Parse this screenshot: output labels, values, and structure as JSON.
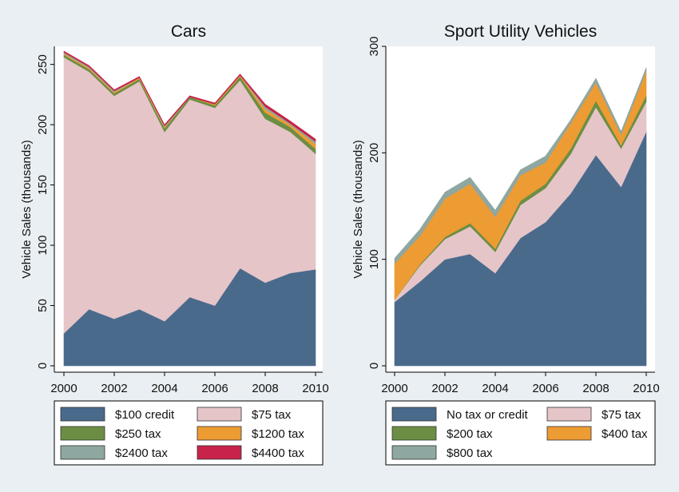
{
  "chart_data": [
    {
      "type": "area",
      "stacked": true,
      "title": "Cars",
      "ylabel": "Vehicle Sales (thousands)",
      "xlabel": "",
      "x": [
        2000,
        2001,
        2002,
        2003,
        2004,
        2005,
        2006,
        2007,
        2008,
        2009,
        2010
      ],
      "xticks": [
        2000,
        2002,
        2004,
        2006,
        2008,
        2010
      ],
      "yticks": [
        0,
        50,
        100,
        150,
        200,
        250
      ],
      "xlim": [
        2000,
        2010
      ],
      "ylim": [
        0,
        265
      ],
      "grid": false,
      "legend_position": "bottom",
      "series": [
        {
          "name": "$100 credit",
          "color": "#4a6a8c",
          "values": [
            27,
            47,
            39,
            47,
            37,
            57,
            50,
            81,
            69,
            77,
            80
          ]
        },
        {
          "name": "$75 tax",
          "color": "#e5c5c8",
          "values": [
            229,
            197,
            185,
            189,
            157,
            164,
            164,
            156,
            136,
            117,
            96
          ]
        },
        {
          "name": "$250 tax",
          "color": "#6b8e44",
          "values": [
            2,
            2,
            2,
            2,
            3,
            2,
            2,
            3,
            5,
            4,
            4
          ]
        },
        {
          "name": "$1200 tax",
          "color": "#ed9b33",
          "values": [
            1,
            1,
            1,
            1,
            1,
            0,
            1,
            1,
            3,
            2,
            4
          ]
        },
        {
          "name": "$2400 tax",
          "color": "#8fa7a1",
          "values": [
            1,
            1,
            1,
            0,
            1,
            0,
            0,
            0,
            2,
            1,
            2
          ]
        },
        {
          "name": "$4400 tax",
          "color": "#c8234a",
          "values": [
            1,
            1,
            1,
            1,
            1,
            1,
            1,
            1,
            2,
            2,
            2
          ]
        }
      ]
    },
    {
      "type": "area",
      "stacked": true,
      "title": "Sport Utility Vehicles",
      "ylabel": "Vehicle Sales (thousands)",
      "xlabel": "",
      "x": [
        2000,
        2001,
        2002,
        2003,
        2004,
        2005,
        2006,
        2007,
        2008,
        2009,
        2010
      ],
      "xticks": [
        2000,
        2002,
        2004,
        2006,
        2008,
        2010
      ],
      "yticks": [
        0,
        100,
        200,
        300
      ],
      "xlim": [
        2000,
        2010
      ],
      "ylim": [
        0,
        300
      ],
      "grid": false,
      "legend_position": "bottom",
      "series": [
        {
          "name": "No tax or credit",
          "color": "#4a6a8c",
          "values": [
            60,
            79,
            100,
            105,
            87,
            120,
            135,
            162,
            198,
            168,
            220
          ]
        },
        {
          "name": "$75 tax",
          "color": "#e5c5c8",
          "values": [
            2,
            15,
            19,
            26,
            20,
            31,
            32,
            37,
            45,
            36,
            28
          ]
        },
        {
          "name": "$200 tax",
          "color": "#6b8e44",
          "values": [
            0,
            1,
            2,
            3,
            3,
            4,
            4,
            5,
            6,
            3,
            6
          ]
        },
        {
          "name": "$400 tax",
          "color": "#ed9b33",
          "values": [
            34,
            27,
            36,
            37,
            30,
            24,
            20,
            24,
            17,
            10,
            23
          ]
        },
        {
          "name": "$800 tax",
          "color": "#8fa7a1",
          "values": [
            5,
            6,
            6,
            6,
            6,
            5,
            6,
            3,
            4,
            3,
            3
          ]
        }
      ]
    }
  ]
}
